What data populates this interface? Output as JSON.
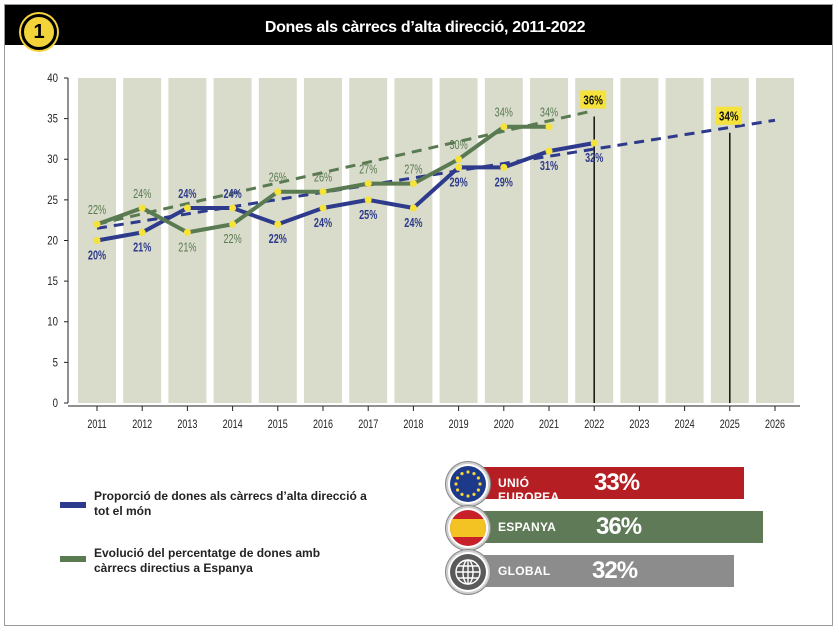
{
  "header": {
    "number": "1",
    "title": "Dones als càrrecs d’alta direcció, 2011-2022"
  },
  "chart_data": {
    "type": "line",
    "categories": [
      "2011",
      "2012",
      "2013",
      "2014",
      "2015",
      "2016",
      "2017",
      "2018",
      "2019",
      "2020",
      "2021",
      "2022",
      "2023",
      "2024",
      "2025",
      "2026"
    ],
    "ylim": [
      0,
      40
    ],
    "yticks": [
      "0",
      "5",
      "10",
      "15",
      "20",
      "25",
      "30",
      "35",
      "40"
    ],
    "grid": true,
    "legend_position": "bottom-left",
    "series": [
      {
        "name": "Proporció de dones als càrrecs d’alta direcció a tot el món",
        "color": "#2e3a8c",
        "x": [
          "2011",
          "2012",
          "2013",
          "2014",
          "2015",
          "2016",
          "2017",
          "2018",
          "2019",
          "2020",
          "2021",
          "2022"
        ],
        "values": [
          20,
          21,
          24,
          24,
          22,
          24,
          25,
          24,
          29,
          29,
          31,
          32
        ],
        "labels": [
          "20%",
          "21%",
          "24%",
          "24%",
          "22%",
          "24%",
          "25%",
          "24%",
          "29%",
          "29%",
          "31%",
          "32%"
        ]
      },
      {
        "name": "Evolució del percentatge de dones amb càrrecs directius a Espanya",
        "color": "#5a7a52",
        "x": [
          "2011",
          "2012",
          "2013",
          "2014",
          "2015",
          "2016",
          "2017",
          "2018",
          "2019",
          "2020",
          "2021"
        ],
        "values": [
          22,
          24,
          21,
          22,
          26,
          26,
          27,
          27,
          30,
          34,
          34
        ],
        "labels": [
          "22%",
          "24%",
          "21%",
          "22%",
          "26%",
          "26%",
          "27%",
          "27%",
          "30%",
          "34%",
          "34%"
        ]
      }
    ],
    "trendlines": [
      {
        "series": "world",
        "color": "#2e3a8c",
        "from": [
          "2011",
          21.5
        ],
        "to": [
          "2026",
          34.8
        ]
      },
      {
        "series": "spain",
        "color": "#5a7a52",
        "from": [
          "2011",
          22
        ],
        "to": [
          "2022",
          36
        ]
      }
    ],
    "annotations": [
      {
        "x": "2022",
        "value": 36,
        "text": "36%"
      },
      {
        "x": "2025",
        "value": 34,
        "text": "34%"
      }
    ]
  },
  "legend": {
    "world": "Proporció de dones als càrrecs d’alta direcció a tot el món",
    "spain": "Evolució del percentatge de dones amb càrrecs directius a Espanya"
  },
  "stats": [
    {
      "icon": "eu-flag-icon",
      "label": "UNIÓ EUROPEA",
      "value": "33%",
      "color": "#b51f24"
    },
    {
      "icon": "spain-flag-icon",
      "label": "ESPANYA",
      "value": "36%",
      "color": "#5e7a56"
    },
    {
      "icon": "globe-icon",
      "label": "GLOBAL",
      "value": "32%",
      "color": "#8c8c8c"
    }
  ]
}
